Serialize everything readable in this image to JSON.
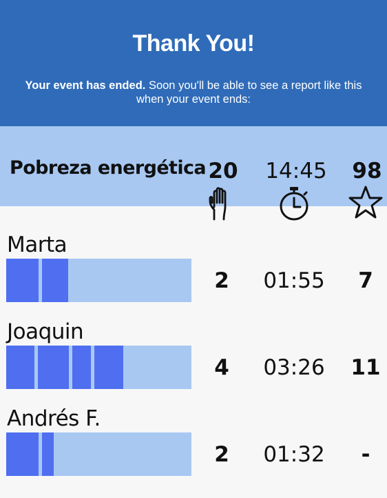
{
  "header": {
    "title": "Thank You!",
    "message_bold": "Your event has ended.",
    "message_rest": " Soon you'll be able to see a report like this when your event ends:"
  },
  "report": {
    "title": "Pobreza energética",
    "totals": {
      "raised_hands": "20",
      "time": "14:45",
      "score": "98"
    },
    "icons": {
      "raised_hands": "raised-hand-icon",
      "time": "stopwatch-icon",
      "score": "star-icon"
    },
    "colors": {
      "bar_track": "#a8c8f2",
      "bar_segment": "#4f6ff0",
      "header": "#2f6bb8"
    },
    "participants": [
      {
        "name": "Marta",
        "raised_hands": "2",
        "time": "01:55",
        "score": "7"
      },
      {
        "name": "Joaquin",
        "raised_hands": "4",
        "time": "03:26",
        "score": "11"
      },
      {
        "name": "Andrés F.",
        "raised_hands": "2",
        "time": "01:32",
        "score": "-"
      }
    ]
  }
}
